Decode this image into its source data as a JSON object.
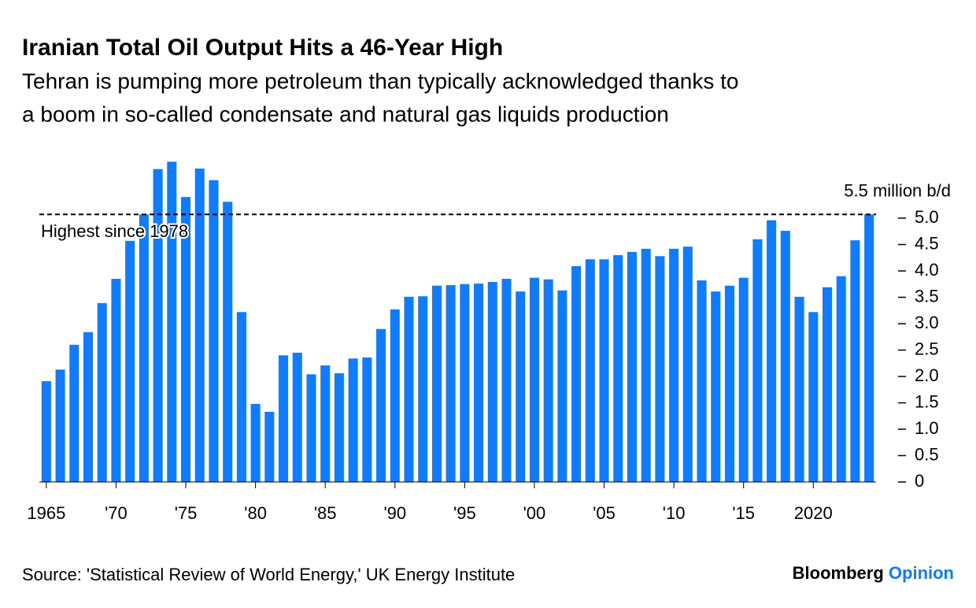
{
  "chart_data": {
    "type": "bar",
    "title": "Iranian Total Oil Output Hits a 46-Year High",
    "subtitle": [
      "Tehran is pumping more petroleum than typically acknowledged thanks to",
      "a boom in so-called condensate and natural gas liquids production"
    ],
    "x": [
      1965,
      1966,
      1967,
      1968,
      1969,
      1970,
      1971,
      1972,
      1973,
      1974,
      1975,
      1976,
      1977,
      1978,
      1979,
      1980,
      1981,
      1982,
      1983,
      1984,
      1985,
      1986,
      1987,
      1988,
      1989,
      1990,
      1991,
      1992,
      1993,
      1994,
      1995,
      1996,
      1997,
      1998,
      1999,
      2000,
      2001,
      2002,
      2003,
      2004,
      2005,
      2006,
      2007,
      2008,
      2009,
      2010,
      2011,
      2012,
      2013,
      2014,
      2015,
      2016,
      2017,
      2018,
      2019,
      2020,
      2021,
      2022,
      2023,
      2024
    ],
    "values": [
      1.91,
      2.13,
      2.6,
      2.84,
      3.39,
      3.85,
      4.57,
      5.07,
      5.93,
      6.07,
      5.4,
      5.94,
      5.72,
      5.31,
      3.22,
      1.48,
      1.33,
      2.4,
      2.45,
      2.04,
      2.21,
      2.06,
      2.34,
      2.36,
      2.9,
      3.27,
      3.51,
      3.52,
      3.72,
      3.73,
      3.75,
      3.76,
      3.79,
      3.85,
      3.61,
      3.87,
      3.84,
      3.63,
      4.09,
      4.22,
      4.22,
      4.3,
      4.36,
      4.42,
      4.28,
      4.42,
      4.46,
      3.82,
      3.61,
      3.72,
      3.87,
      4.6,
      4.96,
      4.76,
      3.51,
      3.22,
      3.69,
      3.9,
      4.58,
      5.07
    ],
    "color": "#0f7bff",
    "xlim": [
      1964.5,
      2024.5
    ],
    "xticks": [
      {
        "value": 1965,
        "label": "1965"
      },
      {
        "value": 1970,
        "label": "'70"
      },
      {
        "value": 1975,
        "label": "'75"
      },
      {
        "value": 1980,
        "label": "'80"
      },
      {
        "value": 1985,
        "label": "'85"
      },
      {
        "value": 1990,
        "label": "'90"
      },
      {
        "value": 1995,
        "label": "'95"
      },
      {
        "value": 2000,
        "label": "'00"
      },
      {
        "value": 2005,
        "label": "'05"
      },
      {
        "value": 2010,
        "label": "'10"
      },
      {
        "value": 2015,
        "label": "'15"
      },
      2020
    ],
    "ylim": [
      0,
      6.1
    ],
    "yticks": [
      0,
      {
        "value": 0.5,
        "label": "0.5"
      },
      {
        "value": 1,
        "label": "1.0"
      },
      {
        "value": 1.5,
        "label": "1.5"
      },
      {
        "value": 2,
        "label": "2.0"
      },
      {
        "value": 2.5,
        "label": "2.5"
      },
      {
        "value": 3,
        "label": "3.0"
      },
      {
        "value": 3.5,
        "label": "3.5"
      },
      {
        "value": 4,
        "label": "4.0"
      },
      {
        "value": 4.5,
        "label": "4.5"
      },
      {
        "value": 5,
        "label": "5.0"
      },
      {
        "value": 5.5,
        "label": "5.5 million b/d"
      }
    ],
    "y_axis_side": "right",
    "reference_line": {
      "value": 5.07,
      "label": "Highest since 1978"
    },
    "source": "Source: 'Statistical Review of World Energy,' UK Energy Institute",
    "brand": "Bloomberg",
    "brand_suffix": "Opinion"
  }
}
